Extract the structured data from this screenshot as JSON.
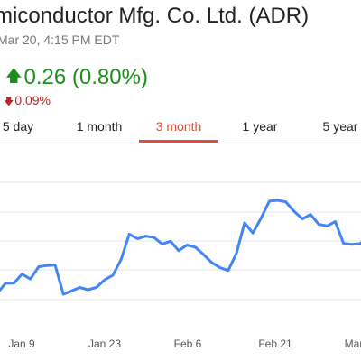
{
  "header": {
    "title": "miconductor Mfg. Co. Ltd. (ADR)",
    "timestamp": "Mar 20, 4:15 PM EDT",
    "change": "0.26 (0.80%)",
    "change_secondary": "0.09%",
    "up_color": "#1a8f1a",
    "down_color": "#c5221f"
  },
  "tabs": [
    {
      "label": "5 day",
      "active": false
    },
    {
      "label": "1 month",
      "active": false
    },
    {
      "label": "3 month",
      "active": true
    },
    {
      "label": "1 year",
      "active": false
    },
    {
      "label": "5 year",
      "active": false
    }
  ],
  "chart_data": {
    "type": "line",
    "line_color": "#4285f4",
    "grid": true,
    "x_tick_labels": [
      "Jan 9",
      "Jan 23",
      "Feb 6",
      "Feb 21",
      "Mar"
    ],
    "series": [
      {
        "values": [
          0.0,
          0.0,
          0.71,
          0.71,
          1.36,
          1.0,
          1.88,
          1.97,
          2.01,
          -0.08,
          0.16,
          0.4,
          0.24,
          0.4,
          0.94,
          1.27,
          2.39,
          4.21,
          3.88,
          4.06,
          3.97,
          3.5,
          3.7,
          3.03,
          3.43,
          3.28,
          2.76,
          2.19,
          1.82,
          1.61,
          2.83,
          5.01,
          4.29,
          5.36,
          6.56,
          6.62,
          6.51,
          5.84,
          5.3,
          5.61,
          4.91,
          4.79,
          5.1,
          3.55,
          3.48,
          3.53,
          4.0
        ]
      }
    ]
  }
}
